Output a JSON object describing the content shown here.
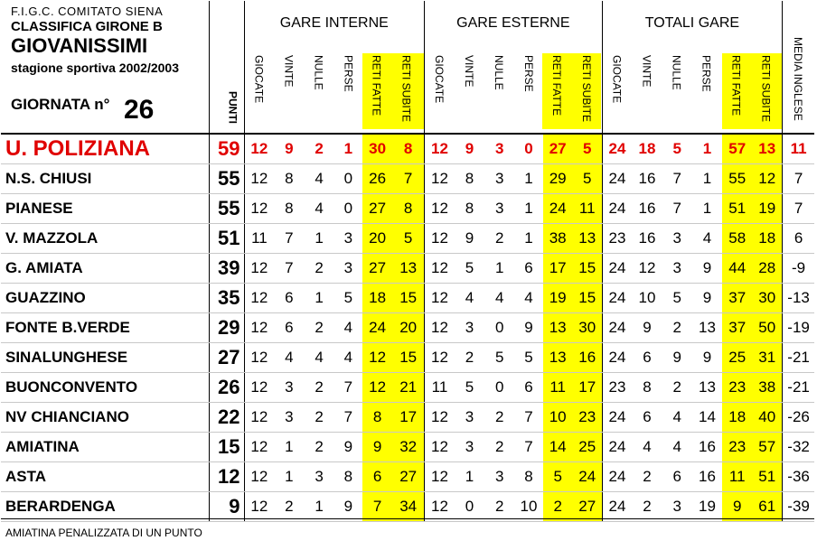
{
  "header": {
    "federation": "F.I.G.C. COMITATO  SIENA",
    "classifica": "CLASSIFICA GIRONE B",
    "category": "GIOVANISSIMI",
    "season": "stagione sportiva 2002/2003",
    "giornata_label": "GIORNATA n°",
    "giornata_number": "26",
    "punti_label": "PUNTI",
    "groups": [
      "GARE INTERNE",
      "GARE ESTERNE",
      "TOTALI GARE"
    ],
    "sub_columns": [
      "GIOCATE",
      "VINTE",
      "NULLE",
      "PERSE",
      "RETI FATTE",
      "RETI SUBITE"
    ],
    "media_label": "MEDIA INGLESE"
  },
  "colors": {
    "leader": "#e00000",
    "highlight": "#ffff00"
  },
  "rows": [
    {
      "team": "U. POLIZIANA",
      "punti": "59",
      "cells": [
        "12",
        "9",
        "2",
        "1",
        "30",
        "8",
        "12",
        "9",
        "3",
        "0",
        "27",
        "5",
        "24",
        "18",
        "5",
        "1",
        "57",
        "13",
        "11"
      ]
    },
    {
      "team": "N.S. CHIUSI",
      "punti": "55",
      "cells": [
        "12",
        "8",
        "4",
        "0",
        "26",
        "7",
        "12",
        "8",
        "3",
        "1",
        "29",
        "5",
        "24",
        "16",
        "7",
        "1",
        "55",
        "12",
        "7"
      ]
    },
    {
      "team": "PIANESE",
      "punti": "55",
      "cells": [
        "12",
        "8",
        "4",
        "0",
        "27",
        "8",
        "12",
        "8",
        "3",
        "1",
        "24",
        "11",
        "24",
        "16",
        "7",
        "1",
        "51",
        "19",
        "7"
      ]
    },
    {
      "team": "V. MAZZOLA",
      "punti": "51",
      "cells": [
        "11",
        "7",
        "1",
        "3",
        "20",
        "5",
        "12",
        "9",
        "2",
        "1",
        "38",
        "13",
        "23",
        "16",
        "3",
        "4",
        "58",
        "18",
        "6"
      ]
    },
    {
      "team": "G. AMIATA",
      "punti": "39",
      "cells": [
        "12",
        "7",
        "2",
        "3",
        "27",
        "13",
        "12",
        "5",
        "1",
        "6",
        "17",
        "15",
        "24",
        "12",
        "3",
        "9",
        "44",
        "28",
        "-9"
      ]
    },
    {
      "team": "GUAZZINO",
      "punti": "35",
      "cells": [
        "12",
        "6",
        "1",
        "5",
        "18",
        "15",
        "12",
        "4",
        "4",
        "4",
        "19",
        "15",
        "24",
        "10",
        "5",
        "9",
        "37",
        "30",
        "-13"
      ]
    },
    {
      "team": "FONTE B.VERDE",
      "punti": "29",
      "cells": [
        "12",
        "6",
        "2",
        "4",
        "24",
        "20",
        "12",
        "3",
        "0",
        "9",
        "13",
        "30",
        "24",
        "9",
        "2",
        "13",
        "37",
        "50",
        "-19"
      ]
    },
    {
      "team": "SINALUNGHESE",
      "punti": "27",
      "cells": [
        "12",
        "4",
        "4",
        "4",
        "12",
        "15",
        "12",
        "2",
        "5",
        "5",
        "13",
        "16",
        "24",
        "6",
        "9",
        "9",
        "25",
        "31",
        "-21"
      ]
    },
    {
      "team": "BUONCONVENTO",
      "punti": "26",
      "cells": [
        "12",
        "3",
        "2",
        "7",
        "12",
        "21",
        "11",
        "5",
        "0",
        "6",
        "11",
        "17",
        "23",
        "8",
        "2",
        "13",
        "23",
        "38",
        "-21"
      ]
    },
    {
      "team": "NV CHIANCIANO",
      "punti": "22",
      "cells": [
        "12",
        "3",
        "2",
        "7",
        "8",
        "17",
        "12",
        "3",
        "2",
        "7",
        "10",
        "23",
        "24",
        "6",
        "4",
        "14",
        "18",
        "40",
        "-26"
      ]
    },
    {
      "team": "AMIATINA",
      "punti": "15",
      "cells": [
        "12",
        "1",
        "2",
        "9",
        "9",
        "32",
        "12",
        "3",
        "2",
        "7",
        "14",
        "25",
        "24",
        "4",
        "4",
        "16",
        "23",
        "57",
        "-32"
      ]
    },
    {
      "team": "ASTA",
      "punti": "12",
      "cells": [
        "12",
        "1",
        "3",
        "8",
        "6",
        "27",
        "12",
        "1",
        "3",
        "8",
        "5",
        "24",
        "24",
        "2",
        "6",
        "16",
        "11",
        "51",
        "-36"
      ]
    },
    {
      "team": "BERARDENGA",
      "punti": "9",
      "cells": [
        "12",
        "2",
        "1",
        "9",
        "7",
        "34",
        "12",
        "0",
        "2",
        "10",
        "2",
        "27",
        "24",
        "2",
        "3",
        "19",
        "9",
        "61",
        "-39"
      ]
    }
  ],
  "footnote": "AMIATINA  PENALIZZATA  DI UN PUNTO"
}
